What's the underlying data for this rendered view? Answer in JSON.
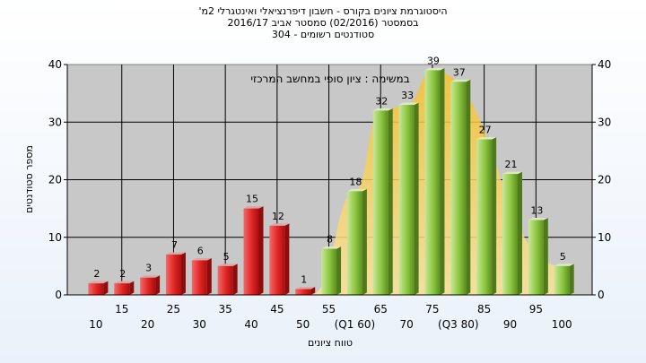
{
  "chart_data": {
    "type": "bar",
    "title": "היסטוגרמת ציונים בקורס - חשבון דיפרנציאלי ואינטגרלי 2מ'",
    "subtitle_lines": [
      "בסמסטר (02/2016) סמסטר אביב 2016/17",
      "סטודנטים רשומים - 304"
    ],
    "annotation": "במשימה : ציון סופי במחשב המרכזי",
    "xlabel": "טווח ציונים",
    "ylabel": "מספר סטודנטים",
    "ylim": [
      0,
      40
    ],
    "yticks": [
      0,
      10,
      20,
      30,
      40
    ],
    "grid": true,
    "categories": [
      10,
      15,
      20,
      25,
      30,
      35,
      40,
      45,
      50,
      55,
      60,
      65,
      70,
      75,
      80,
      85,
      90,
      95,
      100
    ],
    "values": [
      2,
      2,
      3,
      7,
      6,
      5,
      15,
      12,
      1,
      8,
      18,
      32,
      33,
      39,
      37,
      27,
      21,
      13,
      5
    ],
    "value_labels": [
      "2",
      "2",
      "3",
      "7",
      "6",
      "5",
      "15",
      "12",
      "1",
      "8",
      "18",
      "32",
      "33",
      "39",
      "37",
      "27",
      "21",
      "13",
      "5"
    ],
    "upper_tick_labels": [
      "15",
      "25",
      "35",
      "45",
      "55",
      "65",
      "75",
      "85",
      "95"
    ],
    "lower_tick_labels": [
      "10",
      "20",
      "30",
      "40",
      "50",
      "(Q1 60)",
      "70",
      "(Q3 80)",
      "90",
      "100"
    ],
    "fail_threshold": 55,
    "colors": {
      "fail": "#e02424",
      "pass": "#8cc63f",
      "curve": "#f7c948",
      "plot_bg": "#c8c8c8"
    }
  }
}
